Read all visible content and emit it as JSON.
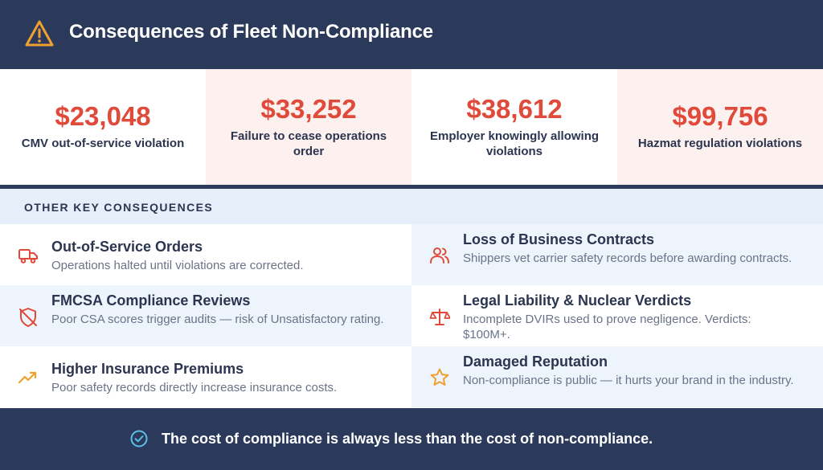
{
  "header": {
    "title": "Consequences of Fleet Non-Compliance",
    "icon": "warning-triangle-icon",
    "accent": "#f0a030"
  },
  "stats": [
    {
      "amount": "$23,048",
      "label": "CMV out-of-service violation"
    },
    {
      "amount": "$33,252",
      "label": "Failure to cease operations order"
    },
    {
      "amount": "$38,612",
      "label": "Employer knowingly allowing violations"
    },
    {
      "amount": "$99,756",
      "label": "Hazmat regulation violations"
    }
  ],
  "section": {
    "heading": "OTHER KEY CONSEQUENCES"
  },
  "consequences": [
    {
      "title": "Out-of-Service Orders",
      "desc": "Operations halted until violations are corrected.",
      "icon": "truck-icon",
      "color": "#e04a3a"
    },
    {
      "title": "Loss of Business Contracts",
      "desc": "Shippers vet carrier safety records before awarding contracts.",
      "icon": "users-icon",
      "color": "#e04a3a"
    },
    {
      "title": "FMCSA Compliance Reviews",
      "desc": "Poor CSA scores trigger audits — risk of Unsatisfactory rating.",
      "icon": "shield-off-icon",
      "color": "#e04a3a"
    },
    {
      "title": "Legal Liability & Nuclear Verdicts",
      "desc": "Incomplete DVIRs used to prove negligence. Verdicts: $100M+.",
      "icon": "scale-icon",
      "color": "#e04a3a"
    },
    {
      "title": "Higher Insurance Premiums",
      "desc": "Poor safety records directly increase insurance costs.",
      "icon": "trending-up-icon",
      "color": "#f0a030"
    },
    {
      "title": "Damaged Reputation",
      "desc": "Non-compliance is public — it hurts your brand in the industry.",
      "icon": "star-icon",
      "color": "#f0a030"
    }
  ],
  "footer": {
    "message": "The cost of compliance is always less than the cost of non-compliance.",
    "icon": "check-circle-icon",
    "accent": "#5bc0e8"
  },
  "colors": {
    "navy": "#2b3a5a",
    "red": "#e04a3a",
    "tint": "#eef4fc",
    "pink": "#fdf1ef"
  }
}
